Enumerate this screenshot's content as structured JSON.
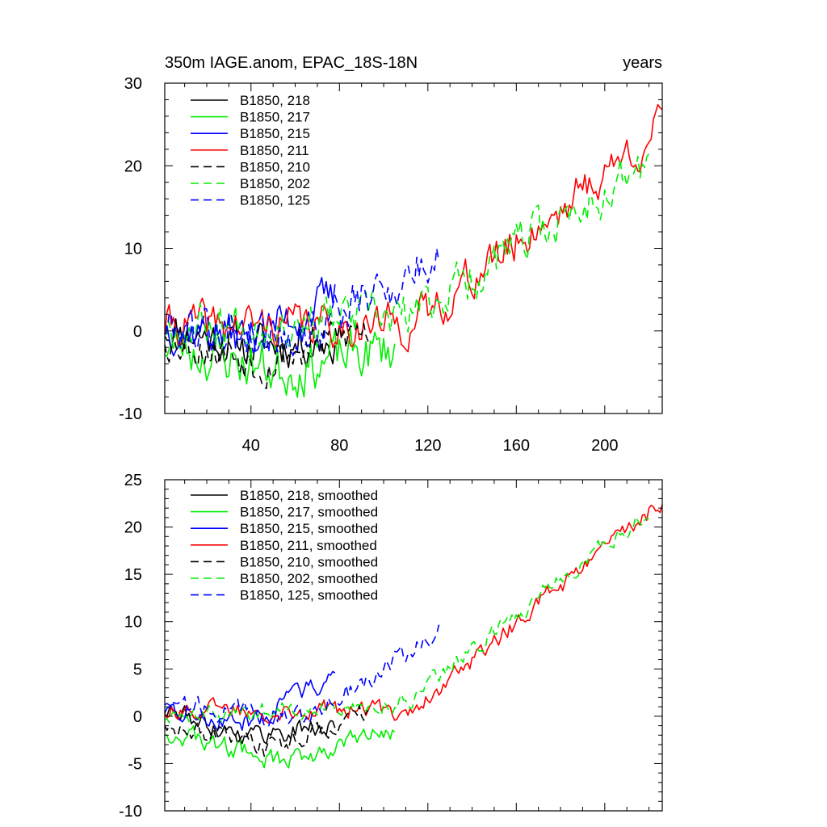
{
  "chart_data": [
    {
      "type": "line",
      "title": "350m IAGE.anom, EPAC_18S-18N",
      "title_right": "years",
      "xlabel": "",
      "ylabel": "",
      "xlim": [
        1,
        226
      ],
      "ylim": [
        -10,
        30
      ],
      "yticks": [
        -10,
        0,
        10,
        20,
        30
      ],
      "ytick_labels": [
        "-10",
        "0",
        "10",
        "20",
        "30"
      ],
      "xticks": [
        40,
        80,
        120,
        160,
        200
      ],
      "xtick_labels": [
        "40",
        "80",
        "120",
        "160",
        "200"
      ],
      "legend_position": "top-left",
      "series": [
        {
          "name": "B1850, 218",
          "color": "#000000",
          "dash": "solid",
          "length": 78,
          "start": 1,
          "end": -1,
          "low": -2,
          "high": -1,
          "noise": 2.2,
          "seed": 11
        },
        {
          "name": "B1850, 217",
          "color": "#00ee00",
          "dash": "solid",
          "length": 105,
          "start": -1,
          "end": -2,
          "low": -5,
          "high": -2,
          "noise": 2.6,
          "seed": 23
        },
        {
          "name": "B1850, 215",
          "color": "#0000ff",
          "dash": "solid",
          "length": 78,
          "start": 1,
          "end": 4,
          "low": -1,
          "high": 4,
          "noise": 2.2,
          "seed": 37
        },
        {
          "name": "B1850, 211",
          "color": "#ff0000",
          "dash": "solid",
          "length": 226,
          "start": 1,
          "end": 25,
          "low": -1,
          "high": 23,
          "noise": 2.1,
          "seed": 41
        },
        {
          "name": "B1850, 210",
          "color": "#000000",
          "dash": "dashed",
          "length": 93,
          "start": 0,
          "end": 0,
          "low": -4,
          "high": 2,
          "noise": 2.2,
          "seed": 53
        },
        {
          "name": "B1850, 202",
          "color": "#00ee00",
          "dash": "dashed",
          "length": 220,
          "start": 1,
          "end": 20,
          "low": 0,
          "high": 22,
          "noise": 2.3,
          "seed": 67
        },
        {
          "name": "B1850, 125",
          "color": "#0000ff",
          "dash": "dashed",
          "length": 125,
          "start": 1,
          "end": 9,
          "low": -1,
          "high": 8,
          "noise": 2.4,
          "seed": 79
        }
      ]
    },
    {
      "type": "line",
      "title": "",
      "xlabel": "",
      "ylabel": "",
      "xlim": [
        1,
        226
      ],
      "ylim": [
        -10,
        25
      ],
      "yticks": [
        -10,
        -5,
        0,
        5,
        10,
        15,
        20,
        25
      ],
      "ytick_labels": [
        "-10",
        "-5",
        "0",
        "5",
        "10",
        "15",
        "20",
        "25"
      ],
      "xticks": [
        40,
        80,
        120,
        160,
        200
      ],
      "xtick_labels": [],
      "legend_position": "top-left",
      "series": [
        {
          "name": "B1850, 218, smoothed",
          "color": "#000000",
          "dash": "solid",
          "length": 78,
          "start": 1,
          "end": -1,
          "low": -2,
          "high": -1,
          "noise": 0.9,
          "seed": 111
        },
        {
          "name": "B1850, 217, smoothed",
          "color": "#00ee00",
          "dash": "solid",
          "length": 105,
          "start": -1,
          "end": -1.5,
          "low": -5,
          "high": -2,
          "noise": 0.9,
          "seed": 123
        },
        {
          "name": "B1850, 215, smoothed",
          "color": "#0000ff",
          "dash": "solid",
          "length": 78,
          "start": 1,
          "end": 4.5,
          "low": -1,
          "high": 4,
          "noise": 0.9,
          "seed": 137
        },
        {
          "name": "B1850, 211, smoothed",
          "color": "#ff0000",
          "dash": "solid",
          "length": 226,
          "start": 1,
          "end": 23,
          "low": -1,
          "high": 22,
          "noise": 0.8,
          "seed": 141
        },
        {
          "name": "B1850, 210, smoothed",
          "color": "#000000",
          "dash": "dashed",
          "length": 93,
          "start": 0,
          "end": 0.5,
          "low": -4,
          "high": 2,
          "noise": 0.9,
          "seed": 153
        },
        {
          "name": "B1850, 202, smoothed",
          "color": "#00ee00",
          "dash": "dashed",
          "length": 220,
          "start": 0,
          "end": 22,
          "low": 0,
          "high": 21,
          "noise": 0.8,
          "seed": 167
        },
        {
          "name": "B1850, 125, smoothed",
          "color": "#0000ff",
          "dash": "dashed",
          "length": 125,
          "start": 2,
          "end": 9,
          "low": -1,
          "high": 8,
          "noise": 0.9,
          "seed": 179
        }
      ]
    }
  ]
}
